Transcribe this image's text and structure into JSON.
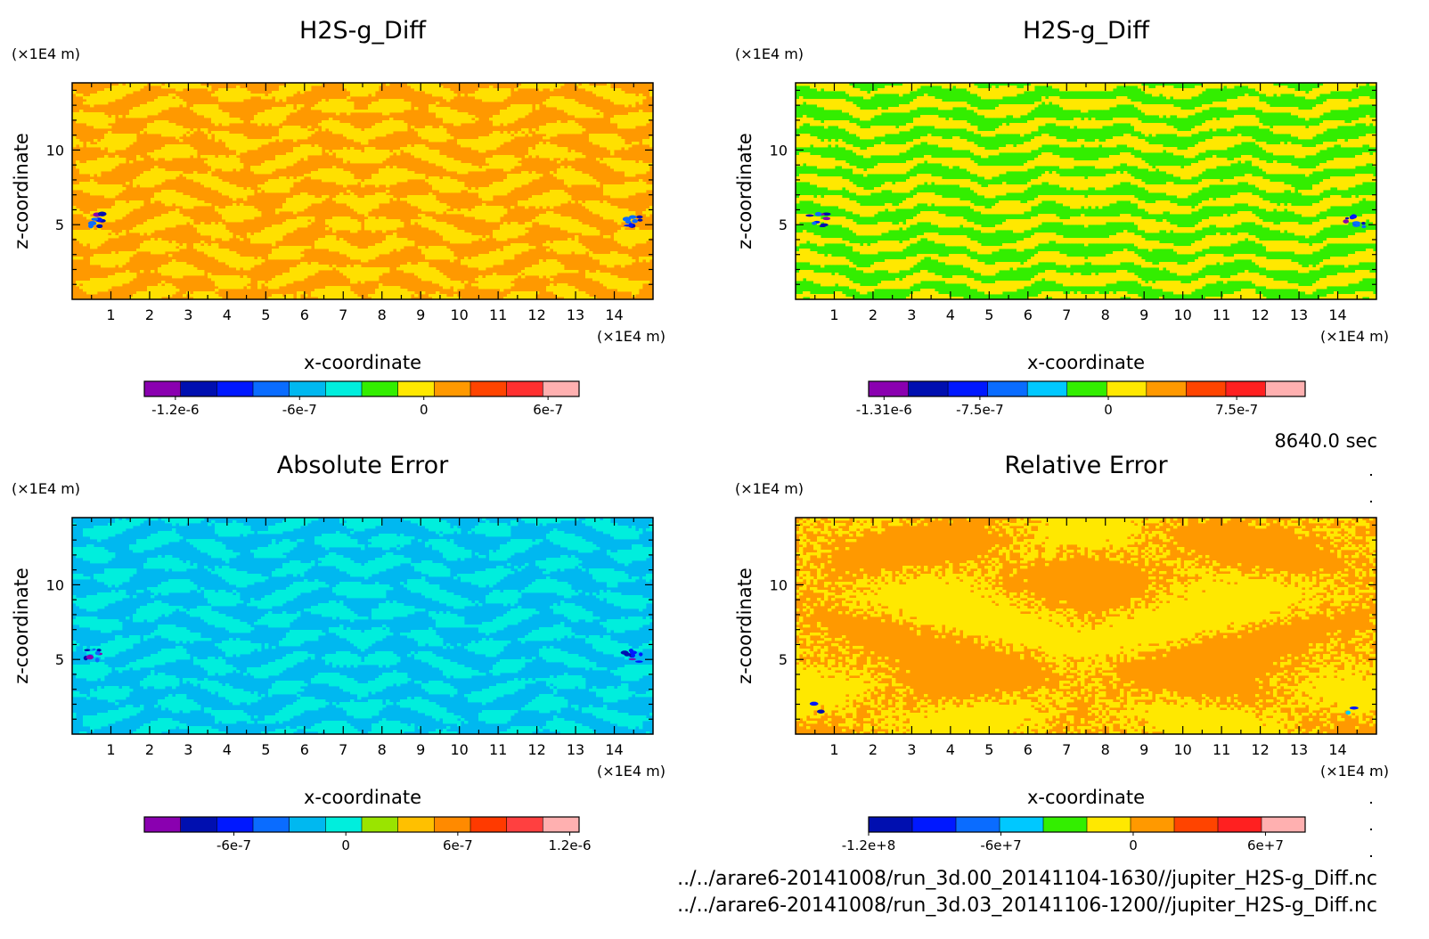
{
  "time_label": "8640.0 sec",
  "file_paths": [
    "../../arare6-20141008/run_3d.00_20141104-1630//jupiter_H2S-g_Diff.nc",
    "../../arare6-20141008/run_3d.03_20141106-1200//jupiter_H2S-g_Diff.nc"
  ],
  "chart_data": [
    {
      "type": "heatmap",
      "title": "H2S-g_Diff",
      "xlabel": "x-coordinate",
      "ylabel": "z-coordinate",
      "x_unit": "(×1E4 m)",
      "y_unit": "(×1E4 m)",
      "xlim": [
        0,
        15
      ],
      "ylim": [
        0,
        14.5
      ],
      "x_ticks": [
        1,
        2,
        3,
        4,
        5,
        6,
        7,
        8,
        9,
        10,
        11,
        12,
        13,
        14
      ],
      "y_ticks": [
        5,
        10
      ],
      "pattern": "mixed",
      "dominant_colors": [
        "#ff9900",
        "#ffe000"
      ],
      "colorbar": {
        "colors": [
          "#8a00b0",
          "#000fb0",
          "#0018ff",
          "#0a6cff",
          "#00b8f0",
          "#00eedd",
          "#33ee00",
          "#ffe800",
          "#ff9900",
          "#ff4400",
          "#ff3030",
          "#ffb0b0"
        ],
        "tick_labels": [
          "-1.2e-6",
          "-6e-7",
          "0",
          "6e-7"
        ],
        "tick_values": [
          -1.2e-06,
          -6e-07,
          0,
          6e-07
        ],
        "range": [
          -1.35e-06,
          7.5e-07
        ]
      }
    },
    {
      "type": "heatmap",
      "title": "H2S-g_Diff",
      "xlabel": "x-coordinate",
      "ylabel": "z-coordinate",
      "x_unit": "(×1E4 m)",
      "y_unit": "(×1E4 m)",
      "xlim": [
        0,
        15
      ],
      "ylim": [
        0,
        14.5
      ],
      "x_ticks": [
        1,
        2,
        3,
        4,
        5,
        6,
        7,
        8,
        9,
        10,
        11,
        12,
        13,
        14
      ],
      "y_ticks": [
        5,
        10
      ],
      "pattern": "banded",
      "dominant_colors": [
        "#33ee00",
        "#ffe800"
      ],
      "colorbar": {
        "colors": [
          "#8a00b0",
          "#000fb0",
          "#0018ff",
          "#0a6cff",
          "#00c8ff",
          "#33ee00",
          "#ffe800",
          "#ff9900",
          "#ff4400",
          "#ff2020",
          "#ffb0b0"
        ],
        "tick_labels": [
          "-1.31e-6",
          "-7.5e-7",
          "0",
          "7.5e-7"
        ],
        "tick_values": [
          -1.31e-06,
          -7.5e-07,
          0,
          7.5e-07
        ],
        "range": [
          -1.4e-06,
          1.15e-06
        ]
      }
    },
    {
      "type": "heatmap",
      "title": "Absolute Error",
      "xlabel": "x-coordinate",
      "ylabel": "z-coordinate",
      "x_unit": "(×1E4 m)",
      "y_unit": "(×1E4 m)",
      "xlim": [
        0,
        15
      ],
      "ylim": [
        0,
        14.5
      ],
      "x_ticks": [
        1,
        2,
        3,
        4,
        5,
        6,
        7,
        8,
        9,
        10,
        11,
        12,
        13,
        14
      ],
      "y_ticks": [
        5,
        10
      ],
      "pattern": "mixed",
      "dominant_colors": [
        "#00b8f0",
        "#00eedd"
      ],
      "colorbar": {
        "colors": [
          "#8a00b0",
          "#000fb0",
          "#0018ff",
          "#0a6cff",
          "#00b8f0",
          "#00eedd",
          "#9ae400",
          "#ffc000",
          "#ff8a00",
          "#ff3a00",
          "#ff4040",
          "#ffb0b0"
        ],
        "tick_labels": [
          "-6e-7",
          "0",
          "6e-7",
          "1.2e-6"
        ],
        "tick_values": [
          -6e-07,
          0,
          6e-07,
          1.2e-06
        ],
        "range": [
          -1.08e-06,
          1.25e-06
        ]
      }
    },
    {
      "type": "heatmap",
      "title": "Relative Error",
      "xlabel": "x-coordinate",
      "ylabel": "z-coordinate",
      "x_unit": "(×1E4 m)",
      "y_unit": "(×1E4 m)",
      "xlim": [
        0,
        15
      ],
      "ylim": [
        0,
        14.5
      ],
      "x_ticks": [
        1,
        2,
        3,
        4,
        5,
        6,
        7,
        8,
        9,
        10,
        11,
        12,
        13,
        14
      ],
      "y_ticks": [
        5,
        10
      ],
      "pattern": "blobs",
      "dominant_colors": [
        "#ff9900",
        "#ffe800"
      ],
      "colorbar": {
        "colors": [
          "#000fb0",
          "#0018ff",
          "#0a6cff",
          "#00c8ff",
          "#33ee00",
          "#ffe800",
          "#ff9900",
          "#ff4400",
          "#ff2020",
          "#ffb0b0"
        ],
        "tick_labels": [
          "-1.2e+8",
          "-6e+7",
          "0",
          "6e+7"
        ],
        "tick_values": [
          -120000000.0,
          -60000000.0,
          0,
          60000000.0
        ],
        "range": [
          -120000000.0,
          78000000.0
        ]
      }
    }
  ]
}
